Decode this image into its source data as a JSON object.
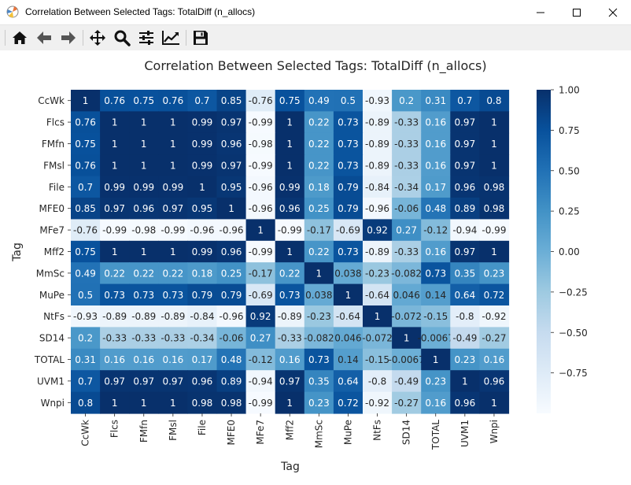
{
  "window": {
    "title": "Correlation Between Selected Tags: TotalDiff (n_allocs)",
    "app_icon": "matplotlib-icon",
    "controls": [
      "minimize-icon",
      "maximize-icon",
      "close-icon"
    ]
  },
  "toolbar": {
    "buttons": [
      {
        "name": "home",
        "icon": "home-icon"
      },
      {
        "name": "back",
        "icon": "arrow-left-icon"
      },
      {
        "name": "forward",
        "icon": "arrow-right-icon"
      },
      {
        "name": "pan",
        "icon": "move-icon"
      },
      {
        "name": "zoom",
        "icon": "zoom-icon"
      },
      {
        "name": "configure-subplots",
        "icon": "sliders-icon"
      },
      {
        "name": "edit-axis",
        "icon": "line-chart-icon"
      },
      {
        "name": "save",
        "icon": "floppy-disk-icon"
      }
    ]
  },
  "colors": {
    "cmap_low": "#f7fbff",
    "cmap_high": "#08306b"
  },
  "chart_data": {
    "type": "heatmap",
    "title": "Correlation Between Selected Tags: TotalDiff (n_allocs)",
    "xlabel": "Tag",
    "ylabel": "Tag",
    "categories": [
      "CcWk",
      "Flcs",
      "FMfn",
      "FMsl",
      "File",
      "MFE0",
      "MFe7",
      "Mff2",
      "MmSc",
      "MuPe",
      "NtFs",
      "SD14",
      "TOTAL",
      "UVM1",
      "Wnpi"
    ],
    "vmin": -1.0,
    "vmax": 1.0,
    "colorbar_ticks": [
      "1.00",
      "0.75",
      "0.50",
      "0.25",
      "0.00",
      "−0.25",
      "−0.50",
      "−0.75"
    ],
    "colorbar_tick_values": [
      1.0,
      0.75,
      0.5,
      0.25,
      0.0,
      -0.25,
      -0.5,
      -0.75
    ],
    "values": [
      [
        1,
        0.76,
        0.75,
        0.76,
        0.7,
        0.85,
        -0.76,
        0.75,
        0.49,
        0.5,
        -0.93,
        0.2,
        0.31,
        0.7,
        0.8
      ],
      [
        0.76,
        1,
        1,
        1,
        0.99,
        0.97,
        -0.99,
        1,
        0.22,
        0.73,
        -0.89,
        -0.33,
        0.16,
        0.97,
        1
      ],
      [
        0.75,
        1,
        1,
        1,
        0.99,
        0.96,
        -0.98,
        1,
        0.22,
        0.73,
        -0.89,
        -0.33,
        0.16,
        0.97,
        1
      ],
      [
        0.76,
        1,
        1,
        1,
        0.99,
        0.97,
        -0.99,
        1,
        0.22,
        0.73,
        -0.89,
        -0.33,
        0.16,
        0.97,
        1
      ],
      [
        0.7,
        0.99,
        0.99,
        0.99,
        1,
        0.95,
        -0.96,
        0.99,
        0.18,
        0.79,
        -0.84,
        -0.34,
        0.17,
        0.96,
        0.98
      ],
      [
        0.85,
        0.97,
        0.96,
        0.97,
        0.95,
        1,
        -0.96,
        0.96,
        0.25,
        0.79,
        -0.96,
        -0.06,
        0.48,
        0.89,
        0.98
      ],
      [
        -0.76,
        -0.99,
        -0.98,
        -0.99,
        -0.96,
        -0.96,
        1,
        -0.99,
        -0.17,
        -0.69,
        0.92,
        0.27,
        -0.12,
        -0.94,
        -0.99
      ],
      [
        0.75,
        1,
        1,
        1,
        0.99,
        0.96,
        -0.99,
        1,
        0.22,
        0.73,
        -0.89,
        -0.33,
        0.16,
        0.97,
        1
      ],
      [
        0.49,
        0.22,
        0.22,
        0.22,
        0.18,
        0.25,
        -0.17,
        0.22,
        1,
        0.038,
        -0.23,
        -0.082,
        0.73,
        0.35,
        0.23
      ],
      [
        0.5,
        0.73,
        0.73,
        0.73,
        0.79,
        0.79,
        -0.69,
        0.73,
        0.038,
        1,
        -0.64,
        0.046,
        0.14,
        0.64,
        0.72
      ],
      [
        -0.93,
        -0.89,
        -0.89,
        -0.89,
        -0.84,
        -0.96,
        0.92,
        -0.89,
        -0.23,
        -0.64,
        1,
        -0.072,
        -0.15,
        -0.8,
        -0.92
      ],
      [
        0.2,
        -0.33,
        -0.33,
        -0.33,
        -0.34,
        -0.06,
        0.27,
        -0.33,
        -0.082,
        0.046,
        -0.072,
        1,
        -0.0067,
        -0.49,
        -0.27
      ],
      [
        0.31,
        0.16,
        0.16,
        0.16,
        0.17,
        0.48,
        -0.12,
        0.16,
        0.73,
        0.14,
        -0.15,
        -0.0067,
        1,
        0.23,
        0.16
      ],
      [
        0.7,
        0.97,
        0.97,
        0.97,
        0.96,
        0.89,
        -0.94,
        0.97,
        0.35,
        0.64,
        -0.8,
        -0.49,
        0.23,
        1,
        0.96
      ],
      [
        0.8,
        1,
        1,
        1,
        0.98,
        0.98,
        -0.99,
        1,
        0.23,
        0.72,
        -0.92,
        -0.27,
        0.16,
        0.96,
        1
      ]
    ]
  }
}
